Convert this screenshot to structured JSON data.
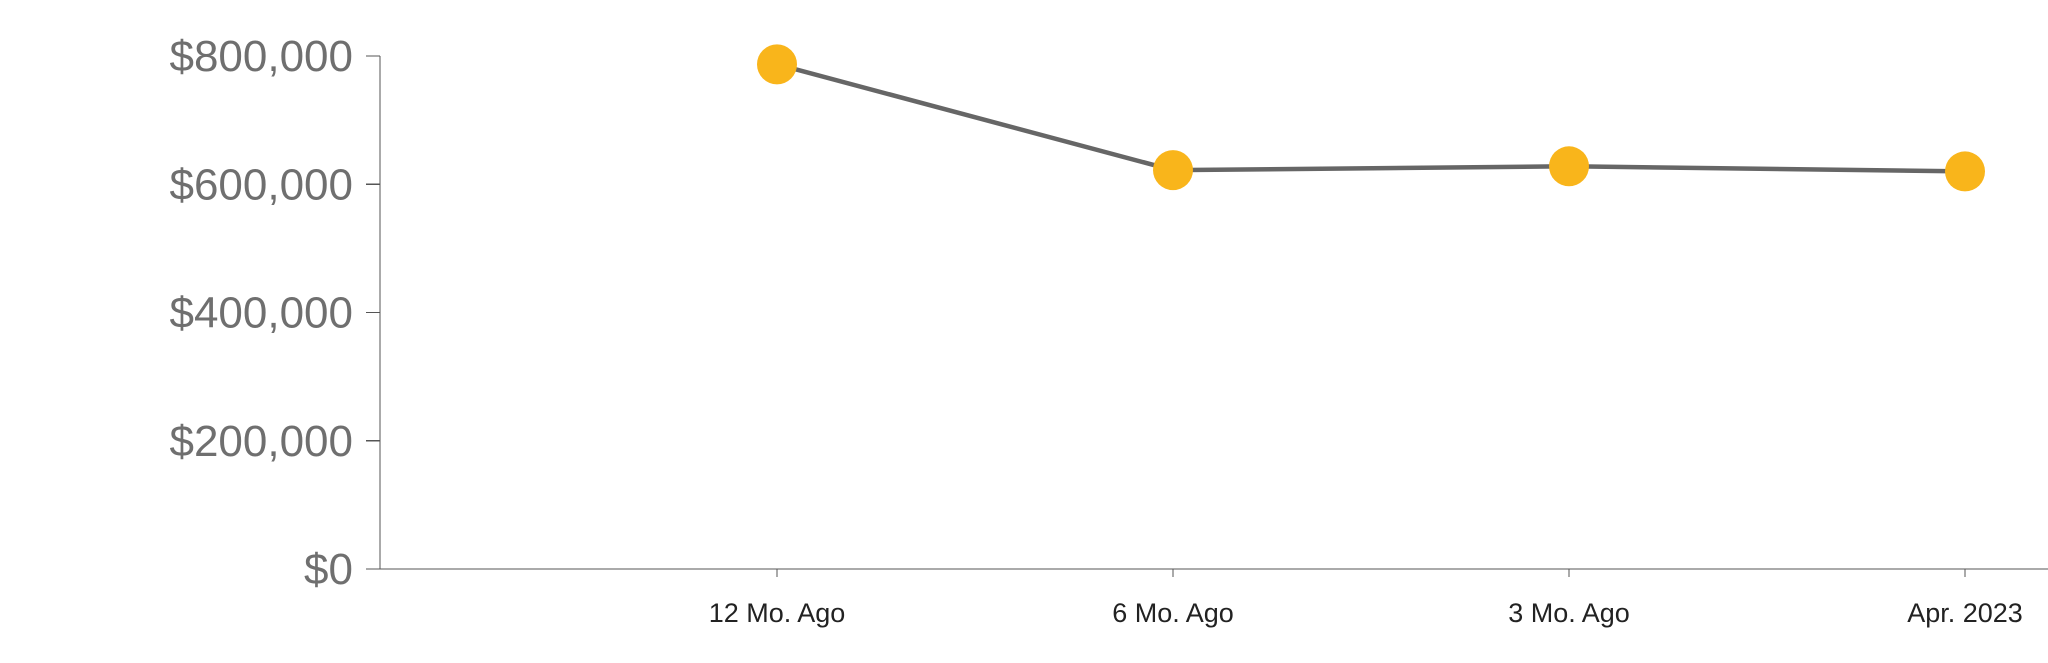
{
  "chart_data": {
    "type": "line",
    "categories": [
      "12 Mo. Ago",
      "6 Mo. Ago",
      "3 Mo. Ago",
      "Apr. 2023"
    ],
    "series": [
      {
        "values": [
          787000,
          622000,
          628000,
          620000
        ]
      }
    ],
    "ylim": [
      0,
      800000
    ],
    "yticks": [
      0,
      200000,
      400000,
      600000,
      800000
    ],
    "ytick_labels": [
      "$0",
      "$200,000",
      "$400,000",
      "$600,000",
      "$800,000"
    ],
    "title": "",
    "xlabel": "",
    "ylabel": "",
    "grid": false,
    "legend": "none",
    "colors": {
      "line": "#666666",
      "marker": "#f9b51b",
      "axis": "#555555"
    }
  }
}
